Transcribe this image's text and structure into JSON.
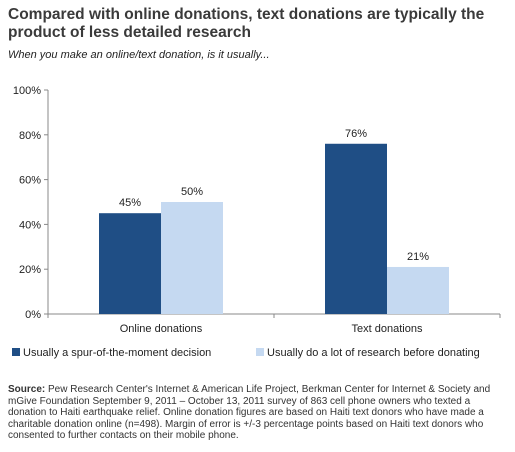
{
  "header": {
    "title": "Compared with online donations, text donations are typically the product of less detailed research",
    "subtitle": "When you make an online/text donation, is it usually..."
  },
  "chart_data": {
    "type": "bar",
    "categories": [
      "Online donations",
      "Text donations"
    ],
    "series": [
      {
        "name": "Usually a spur-of-the-moment decision",
        "values": [
          45,
          76
        ],
        "labels": [
          "45%",
          "76%"
        ],
        "color": "#1f4e85"
      },
      {
        "name": "Usually do a lot of research before donating",
        "values": [
          50,
          21
        ],
        "labels": [
          "50%",
          "21%"
        ],
        "color": "#c5d9f1"
      }
    ],
    "yticks": [
      "0%",
      "20%",
      "40%",
      "60%",
      "80%",
      "100%"
    ],
    "ylim": [
      0,
      100
    ],
    "grid": false,
    "legend": "bottom"
  },
  "source": {
    "label": "Source:",
    "text": "Pew Research Center's Internet & American Life Project, Berkman Center for Internet & Society and mGive Foundation September 9, 2011 – October 13, 2011 survey of 863 cell phone owners who texted a donation to Haiti earthquake relief. Online donation figures are based on Haiti text donors who have made a charitable donation online (n=498). Margin of error is +/-3 percentage points based on Haiti text donors who consented to further contacts on their mobile phone."
  }
}
